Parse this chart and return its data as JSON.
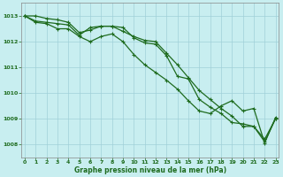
{
  "background_color": "#c8eef0",
  "plot_bg_color": "#c8eef0",
  "grid_color": "#a0d0d8",
  "line_color": "#1e6b1e",
  "marker_color": "#1e6b1e",
  "xlabel": "Graphe pression niveau de la mer (hPa)",
  "ylim": [
    1007.5,
    1013.5
  ],
  "xlim": [
    -0.3,
    23.3
  ],
  "yticks": [
    1008,
    1009,
    1010,
    1011,
    1012,
    1013
  ],
  "xticks": [
    0,
    1,
    2,
    3,
    4,
    5,
    6,
    7,
    8,
    9,
    10,
    11,
    12,
    13,
    14,
    15,
    16,
    17,
    18,
    19,
    20,
    21,
    22,
    23
  ],
  "series1": [
    1013.0,
    1012.8,
    1012.75,
    1012.7,
    1012.65,
    1012.25,
    1012.55,
    1012.6,
    1012.6,
    1012.55,
    1012.15,
    1011.95,
    1011.9,
    1011.45,
    1010.65,
    1010.55,
    1009.75,
    1009.45,
    1009.2,
    1008.85,
    1008.8,
    1008.7,
    1008.1,
    1009.0
  ],
  "series2": [
    1013.0,
    1013.0,
    1012.9,
    1012.85,
    1012.75,
    1012.35,
    1012.45,
    1012.6,
    1012.6,
    1012.4,
    1012.2,
    1012.05,
    1012.0,
    1011.55,
    1011.1,
    1010.6,
    1010.1,
    1009.75,
    1009.4,
    1009.1,
    1008.7,
    1008.7,
    1008.2,
    1009.0
  ],
  "series3": [
    1013.0,
    1012.75,
    1012.7,
    1012.5,
    1012.5,
    1012.2,
    1012.0,
    1012.2,
    1012.3,
    1012.0,
    1011.5,
    1011.1,
    1010.8,
    1010.5,
    1010.15,
    1009.7,
    1009.3,
    1009.2,
    1009.5,
    1009.7,
    1009.3,
    1009.4,
    1008.05,
    1009.05
  ]
}
